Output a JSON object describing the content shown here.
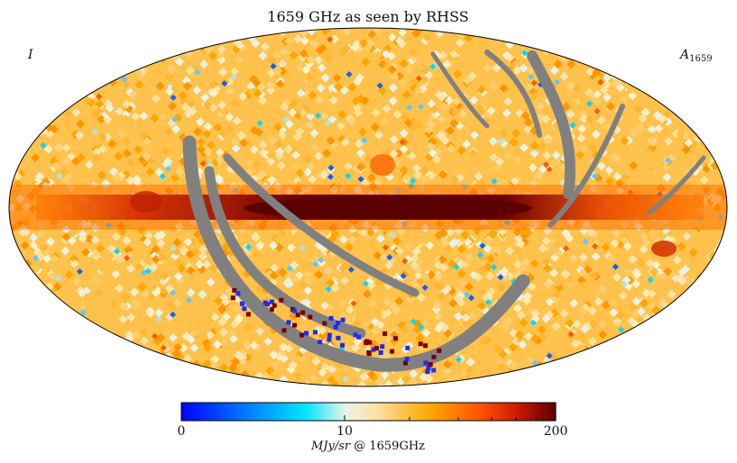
{
  "figure": {
    "title": "1659 GHz as seen by RHSS",
    "stokes_label": "I",
    "component_label": {
      "symbol": "A",
      "subscript": "1659"
    }
  },
  "map": {
    "projection": "Mollweide",
    "bad_pixel_color": "#808080",
    "outline_color": "#000000"
  },
  "colorbar": {
    "min": 0,
    "max": 200,
    "tick_labels": [
      "0",
      "10",
      "200"
    ],
    "label_italic": "MJy/sr",
    "label_rest": " @ 1659GHz",
    "stops": [
      {
        "offset": "0%",
        "color": "#0000ff"
      },
      {
        "offset": "18%",
        "color": "#0080ff"
      },
      {
        "offset": "33%",
        "color": "#00e5ff"
      },
      {
        "offset": "44%",
        "color": "#e6f5e8"
      },
      {
        "offset": "52%",
        "color": "#ffe0a8"
      },
      {
        "offset": "66%",
        "color": "#ffaa00"
      },
      {
        "offset": "80%",
        "color": "#ff5200"
      },
      {
        "offset": "90%",
        "color": "#cc1800"
      },
      {
        "offset": "100%",
        "color": "#5a0000"
      }
    ]
  }
}
